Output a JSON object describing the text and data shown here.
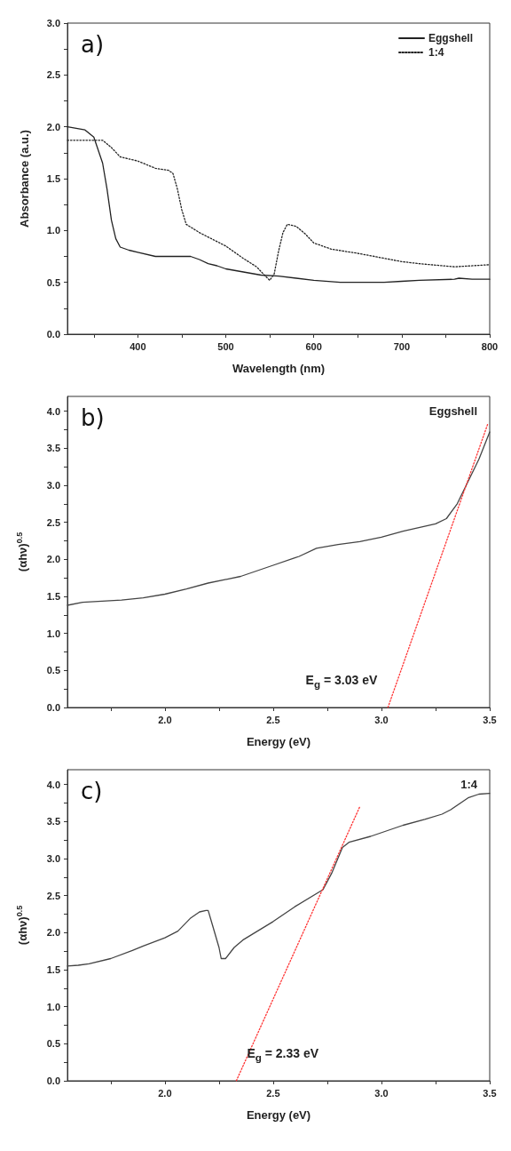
{
  "chart_data": [
    {
      "type": "line",
      "title": "a)",
      "xlabel": "Wavelength (nm)",
      "ylabel": "Absorbance (a.u.)",
      "xlim": [
        320,
        800
      ],
      "ylim": [
        0,
        3
      ],
      "xticks": [
        {
          "value": 350,
          "label": null
        },
        400,
        {
          "value": 450,
          "label": null
        },
        500,
        {
          "value": 550,
          "label": null
        },
        600,
        {
          "value": 650,
          "label": null
        },
        700,
        {
          "value": 750,
          "label": null
        },
        800
      ],
      "yticks": [
        {
          "value": 0,
          "label": "0.0"
        },
        {
          "value": 0.25,
          "label": null
        },
        {
          "value": 0.5,
          "label": "0.5"
        },
        {
          "value": 0.75,
          "label": null
        },
        {
          "value": 1,
          "label": "1.0"
        },
        {
          "value": 1.25,
          "label": null
        },
        {
          "value": 1.5,
          "label": "1.5"
        },
        {
          "value": 1.75,
          "label": null
        },
        {
          "value": 2,
          "label": "2.0"
        },
        {
          "value": 2.25,
          "label": null
        },
        {
          "value": 2.5,
          "label": "2.5"
        },
        {
          "value": 2.75,
          "label": null
        },
        {
          "value": 3,
          "label": "3.0"
        }
      ],
      "legend": "top right",
      "grid": false,
      "marker": "none",
      "series": [
        {
          "name": "Eggshell",
          "color": "#222222",
          "line_style": "solid",
          "x": [
            320,
            340,
            350,
            360,
            365,
            370,
            375,
            380,
            390,
            400,
            420,
            440,
            460,
            470,
            480,
            490,
            500,
            520,
            540,
            560,
            580,
            600,
            630,
            680,
            700,
            720,
            760,
            765,
            780,
            800
          ],
          "values": [
            2.0,
            1.97,
            1.9,
            1.65,
            1.4,
            1.1,
            0.92,
            0.84,
            0.81,
            0.79,
            0.75,
            0.75,
            0.75,
            0.72,
            0.68,
            0.66,
            0.63,
            0.6,
            0.57,
            0.56,
            0.54,
            0.52,
            0.5,
            0.5,
            0.51,
            0.52,
            0.53,
            0.54,
            0.53,
            0.53
          ]
        },
        {
          "name": "1:4",
          "color": "#222222",
          "line_style": "dotted",
          "x": [
            320,
            360,
            370,
            380,
            400,
            420,
            435,
            440,
            445,
            450,
            455,
            470,
            500,
            520,
            535,
            545,
            550,
            555,
            560,
            565,
            570,
            580,
            590,
            600,
            620,
            650,
            700,
            720,
            760,
            800
          ],
          "values": [
            1.87,
            1.87,
            1.8,
            1.71,
            1.67,
            1.6,
            1.58,
            1.55,
            1.4,
            1.2,
            1.06,
            0.98,
            0.85,
            0.73,
            0.65,
            0.56,
            0.52,
            0.58,
            0.8,
            0.98,
            1.06,
            1.04,
            0.97,
            0.88,
            0.82,
            0.78,
            0.7,
            0.68,
            0.65,
            0.67
          ]
        }
      ]
    },
    {
      "type": "line",
      "title": "b)",
      "xlabel": "Energy (eV)",
      "ylabel": "(αhν)$^{0.5}$",
      "xlim": [
        1.55,
        3.5
      ],
      "ylim": [
        0,
        4.2
      ],
      "xticks": [
        {
          "value": 1.75,
          "label": null
        },
        {
          "value": 2,
          "label": "2.0"
        },
        {
          "value": 2.25,
          "label": null
        },
        2.5,
        {
          "value": 2.75,
          "label": null
        },
        {
          "value": 3,
          "label": "3.0"
        },
        {
          "value": 3.25,
          "label": null
        },
        3.5
      ],
      "yticks": [
        {
          "value": 0,
          "label": "0.0"
        },
        {
          "value": 0.25,
          "label": null
        },
        {
          "value": 0.5,
          "label": "0.5"
        },
        {
          "value": 0.75,
          "label": null
        },
        {
          "value": 1,
          "label": "1.0"
        },
        {
          "value": 1.25,
          "label": null
        },
        {
          "value": 1.5,
          "label": "1.5"
        },
        {
          "value": 1.75,
          "label": null
        },
        {
          "value": 2,
          "label": "2.0"
        },
        {
          "value": 2.25,
          "label": null
        },
        {
          "value": 2.5,
          "label": "2.5"
        },
        {
          "value": 2.75,
          "label": null
        },
        {
          "value": 3,
          "label": "3.0"
        },
        {
          "value": 3.25,
          "label": null
        },
        {
          "value": 3.5,
          "label": "3.5"
        },
        {
          "value": 3.75,
          "label": null
        },
        {
          "value": 4,
          "label": "4.0"
        }
      ],
      "grid": false,
      "marker": "none",
      "annotations": [
        "Eggshell",
        {
          "text": "E$_{g}$ = 3.03 eV",
          "x": 3.03,
          "y": 0
        }
      ],
      "series": [
        {
          "color": "#444444",
          "line_style": "solid",
          "x": [
            1.55,
            1.62,
            1.8,
            1.9,
            2.0,
            2.1,
            2.2,
            2.35,
            2.5,
            2.6,
            2.62,
            2.7,
            2.8,
            2.9,
            3.0,
            3.1,
            3.25,
            3.3,
            3.35,
            3.4,
            3.45,
            3.5
          ],
          "values": [
            1.38,
            1.42,
            1.45,
            1.48,
            1.53,
            1.6,
            1.68,
            1.77,
            1.92,
            2.02,
            2.04,
            2.15,
            2.2,
            2.24,
            2.3,
            2.38,
            2.48,
            2.55,
            2.75,
            3.05,
            3.35,
            3.72
          ]
        },
        {
          "color": "#ff3333",
          "line_style": "dotted",
          "x": [
            3.03,
            3.49
          ],
          "values": [
            0,
            3.82
          ]
        }
      ]
    },
    {
      "type": "line",
      "title": "c)",
      "xlabel": "Energy (eV)",
      "ylabel": "(αhν)$^{0.5}$",
      "xlim": [
        1.55,
        3.5
      ],
      "ylim": [
        0,
        4.2
      ],
      "xticks": [
        {
          "value": 1.75,
          "label": null
        },
        {
          "value": 2,
          "label": "2.0"
        },
        {
          "value": 2.25,
          "label": null
        },
        2.5,
        {
          "value": 2.75,
          "label": null
        },
        {
          "value": 3,
          "label": "3.0"
        },
        {
          "value": 3.25,
          "label": null
        },
        3.5
      ],
      "yticks": [
        {
          "value": 0,
          "label": "0.0"
        },
        {
          "value": 0.25,
          "label": null
        },
        {
          "value": 0.5,
          "label": "0.5"
        },
        {
          "value": 0.75,
          "label": null
        },
        {
          "value": 1,
          "label": "1.0"
        },
        {
          "value": 1.25,
          "label": null
        },
        {
          "value": 1.5,
          "label": "1.5"
        },
        {
          "value": 1.75,
          "label": null
        },
        {
          "value": 2,
          "label": "2.0"
        },
        {
          "value": 2.25,
          "label": null
        },
        {
          "value": 2.5,
          "label": "2.5"
        },
        {
          "value": 2.75,
          "label": null
        },
        {
          "value": 3,
          "label": "3.0"
        },
        {
          "value": 3.25,
          "label": null
        },
        {
          "value": 3.5,
          "label": "3.5"
        },
        {
          "value": 3.75,
          "label": null
        },
        {
          "value": 4,
          "label": "4.0"
        }
      ],
      "grid": false,
      "marker": "none",
      "annotations": [
        "1:4",
        {
          "text": "E$_{g}$ = 2.33 eV",
          "x": 2.33,
          "y": 0
        }
      ],
      "series": [
        {
          "color": "#444444",
          "line_style": "solid",
          "x": [
            1.55,
            1.6,
            1.65,
            1.75,
            1.85,
            1.9,
            2.0,
            2.06,
            2.12,
            2.16,
            2.19,
            2.2,
            2.22,
            2.25,
            2.26,
            2.28,
            2.32,
            2.36,
            2.5,
            2.6,
            2.73,
            2.77,
            2.82,
            2.85,
            2.95,
            3.1,
            3.2,
            3.28,
            3.32,
            3.4,
            3.45,
            3.5
          ],
          "values": [
            1.55,
            1.56,
            1.58,
            1.65,
            1.76,
            1.82,
            1.93,
            2.02,
            2.2,
            2.28,
            2.3,
            2.3,
            2.1,
            1.8,
            1.65,
            1.65,
            1.8,
            1.9,
            2.15,
            2.35,
            2.58,
            2.8,
            3.15,
            3.22,
            3.3,
            3.45,
            3.53,
            3.6,
            3.66,
            3.82,
            3.87,
            3.88
          ]
        },
        {
          "color": "#ff3333",
          "line_style": "dotted",
          "x": [
            2.33,
            2.9
          ],
          "values": [
            0,
            3.7
          ]
        }
      ]
    }
  ]
}
